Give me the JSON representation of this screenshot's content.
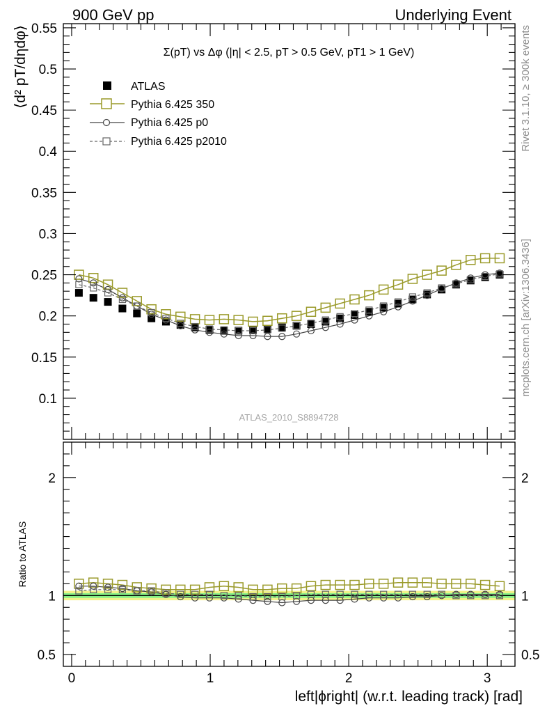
{
  "header": {
    "left": "900 GeV pp",
    "right": "Underlying Event"
  },
  "side_text": {
    "rivet": "Rivet 3.1.10, ≥ 300k events",
    "mcplots": "mcplots.cern.ch [arXiv:1306.3436]"
  },
  "analysis_id": "ATLAS_2010_S8894728",
  "colors": {
    "atlas": "#000000",
    "p350": "#9a9a2a",
    "p0": "#444444",
    "p2010": "#666666",
    "band_inner": "#86f086",
    "band_outer": "#f2f28a"
  },
  "chart_data": [
    {
      "type": "scatter",
      "panel": "main",
      "title": "Σ(pT) vs Δφ (|η| < 2.5, pT > 0.5 GeV, pT1 > 1 GeV)",
      "ylabel": "⟨d² pT/dηdφ⟩",
      "ylim": [
        0.05,
        0.555
      ],
      "xlim": [
        -0.06,
        3.2
      ],
      "yticks": [
        "0.1",
        "0.15",
        "0.2",
        "0.25",
        "0.3",
        "0.35",
        "0.4",
        "0.45",
        "0.5",
        "0.55"
      ],
      "legend_placement": "top-left",
      "x": [
        0.0524,
        0.1571,
        0.2618,
        0.3665,
        0.4712,
        0.576,
        0.6807,
        0.7854,
        0.8901,
        0.9948,
        1.0996,
        1.2043,
        1.309,
        1.4137,
        1.5184,
        1.6232,
        1.7279,
        1.8326,
        1.9373,
        2.042,
        2.1468,
        2.2515,
        2.3562,
        2.4609,
        2.5656,
        2.6704,
        2.7751,
        2.8798,
        2.9845,
        3.0892
      ],
      "series": [
        {
          "name": "ATLAS",
          "marker": "filled-square",
          "values": [
            0.228,
            0.222,
            0.217,
            0.209,
            0.203,
            0.197,
            0.193,
            0.189,
            0.186,
            0.183,
            0.182,
            0.182,
            0.183,
            0.184,
            0.186,
            0.188,
            0.19,
            0.193,
            0.197,
            0.201,
            0.205,
            0.21,
            0.215,
            0.22,
            0.226,
            0.232,
            0.238,
            0.243,
            0.247,
            0.25
          ]
        },
        {
          "name": "Pythia 6.425 350",
          "marker": "open-square",
          "values": [
            0.25,
            0.246,
            0.238,
            0.228,
            0.218,
            0.208,
            0.202,
            0.199,
            0.196,
            0.195,
            0.196,
            0.195,
            0.193,
            0.194,
            0.197,
            0.2,
            0.205,
            0.21,
            0.215,
            0.22,
            0.225,
            0.232,
            0.238,
            0.245,
            0.25,
            0.255,
            0.262,
            0.268,
            0.27,
            0.27
          ]
        },
        {
          "name": "Pythia 6.425 p0",
          "marker": "open-circle",
          "values": [
            0.245,
            0.24,
            0.232,
            0.222,
            0.212,
            0.202,
            0.195,
            0.188,
            0.183,
            0.18,
            0.178,
            0.176,
            0.176,
            0.175,
            0.175,
            0.178,
            0.182,
            0.186,
            0.19,
            0.195,
            0.2,
            0.205,
            0.211,
            0.218,
            0.225,
            0.233,
            0.24,
            0.246,
            0.25,
            0.252
          ]
        },
        {
          "name": "Pythia 6.425 p2010",
          "marker": "open-square-dashed",
          "values": [
            0.238,
            0.234,
            0.228,
            0.22,
            0.212,
            0.204,
            0.197,
            0.191,
            0.187,
            0.184,
            0.183,
            0.182,
            0.182,
            0.183,
            0.185,
            0.188,
            0.191,
            0.195,
            0.199,
            0.203,
            0.207,
            0.212,
            0.217,
            0.223,
            0.228,
            0.234,
            0.239,
            0.244,
            0.248,
            0.251
          ]
        }
      ]
    },
    {
      "type": "scatter",
      "panel": "ratio",
      "ylabel": "Ratio to ATLAS",
      "xlabel": "left|ϕright| (w.r.t. leading track) [rad]",
      "ylim": [
        0.4,
        2.3
      ],
      "xlim": [
        -0.06,
        3.2
      ],
      "yticks": [
        "0.5",
        "1",
        "2"
      ],
      "xticks": [
        "0",
        "1",
        "2",
        "3"
      ],
      "x": [
        0.0524,
        0.1571,
        0.2618,
        0.3665,
        0.4712,
        0.576,
        0.6807,
        0.7854,
        0.8901,
        0.9948,
        1.0996,
        1.2043,
        1.309,
        1.4137,
        1.5184,
        1.6232,
        1.7279,
        1.8326,
        1.9373,
        2.042,
        2.1468,
        2.2515,
        2.3562,
        2.4609,
        2.5656,
        2.6704,
        2.7751,
        2.8798,
        2.9845,
        3.0892
      ],
      "band_inner": [
        0.98,
        1.02
      ],
      "band_outer": [
        0.96,
        1.04
      ],
      "series": [
        {
          "name": "Pythia 6.425 350",
          "marker": "open-square",
          "values": [
            1.1,
            1.11,
            1.1,
            1.09,
            1.07,
            1.06,
            1.05,
            1.05,
            1.05,
            1.07,
            1.08,
            1.07,
            1.05,
            1.05,
            1.06,
            1.06,
            1.08,
            1.09,
            1.09,
            1.09,
            1.1,
            1.1,
            1.11,
            1.11,
            1.11,
            1.1,
            1.1,
            1.1,
            1.09,
            1.08
          ]
        },
        {
          "name": "Pythia 6.425 p0",
          "marker": "open-circle",
          "values": [
            1.08,
            1.08,
            1.07,
            1.06,
            1.04,
            1.03,
            1.01,
            0.99,
            0.98,
            0.98,
            0.98,
            0.97,
            0.96,
            0.95,
            0.94,
            0.95,
            0.96,
            0.96,
            0.96,
            0.97,
            0.98,
            0.98,
            0.98,
            0.99,
            0.99,
            1.0,
            1.01,
            1.01,
            1.01,
            1.01
          ]
        },
        {
          "name": "Pythia 6.425 p2010",
          "marker": "open-square-dashed",
          "values": [
            1.04,
            1.05,
            1.05,
            1.05,
            1.04,
            1.04,
            1.02,
            1.01,
            1.01,
            1.01,
            1.0,
            1.0,
            0.99,
            0.99,
            0.99,
            1.0,
            1.01,
            1.01,
            1.01,
            1.01,
            1.01,
            1.01,
            1.01,
            1.01,
            1.01,
            1.01,
            1.0,
            1.0,
            1.0,
            1.0
          ]
        }
      ]
    }
  ]
}
